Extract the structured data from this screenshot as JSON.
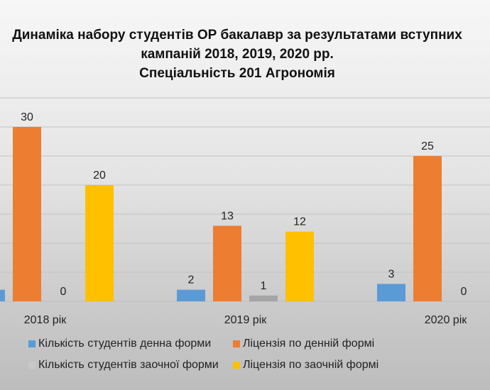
{
  "chart_data": {
    "type": "bar",
    "title_lines": [
      "Динаміка набору студентів ОР бакалавр за результатами вступних",
      "кампаній 2018, 2019, 2020 рр.",
      "Спеціальність 201 Агрономія"
    ],
    "categories": [
      "2018 рік",
      "2019 рік",
      "2020 рік"
    ],
    "series": [
      {
        "name": "Кількість студентів денна форми",
        "color": "#5b9bd5",
        "values": [
          2,
          2,
          3
        ],
        "labels": [
          null,
          "2",
          "3"
        ]
      },
      {
        "name": "Ліцензія по денній формі",
        "color": "#ed7d31",
        "values": [
          30,
          13,
          25
        ],
        "labels": [
          "30",
          "13",
          "25"
        ]
      },
      {
        "name": "Кількість студентів заочної форми",
        "color": "#a5a5a5",
        "values": [
          0,
          1,
          0
        ],
        "labels": [
          "0",
          "1",
          "0"
        ]
      },
      {
        "name": "Ліцензія по заочній формі",
        "color": "#ffc000",
        "values": [
          20,
          12,
          null
        ],
        "labels": [
          "20",
          "12",
          null
        ]
      }
    ],
    "ylim": [
      0,
      35
    ],
    "grid": true,
    "legend_position": "bottom"
  }
}
